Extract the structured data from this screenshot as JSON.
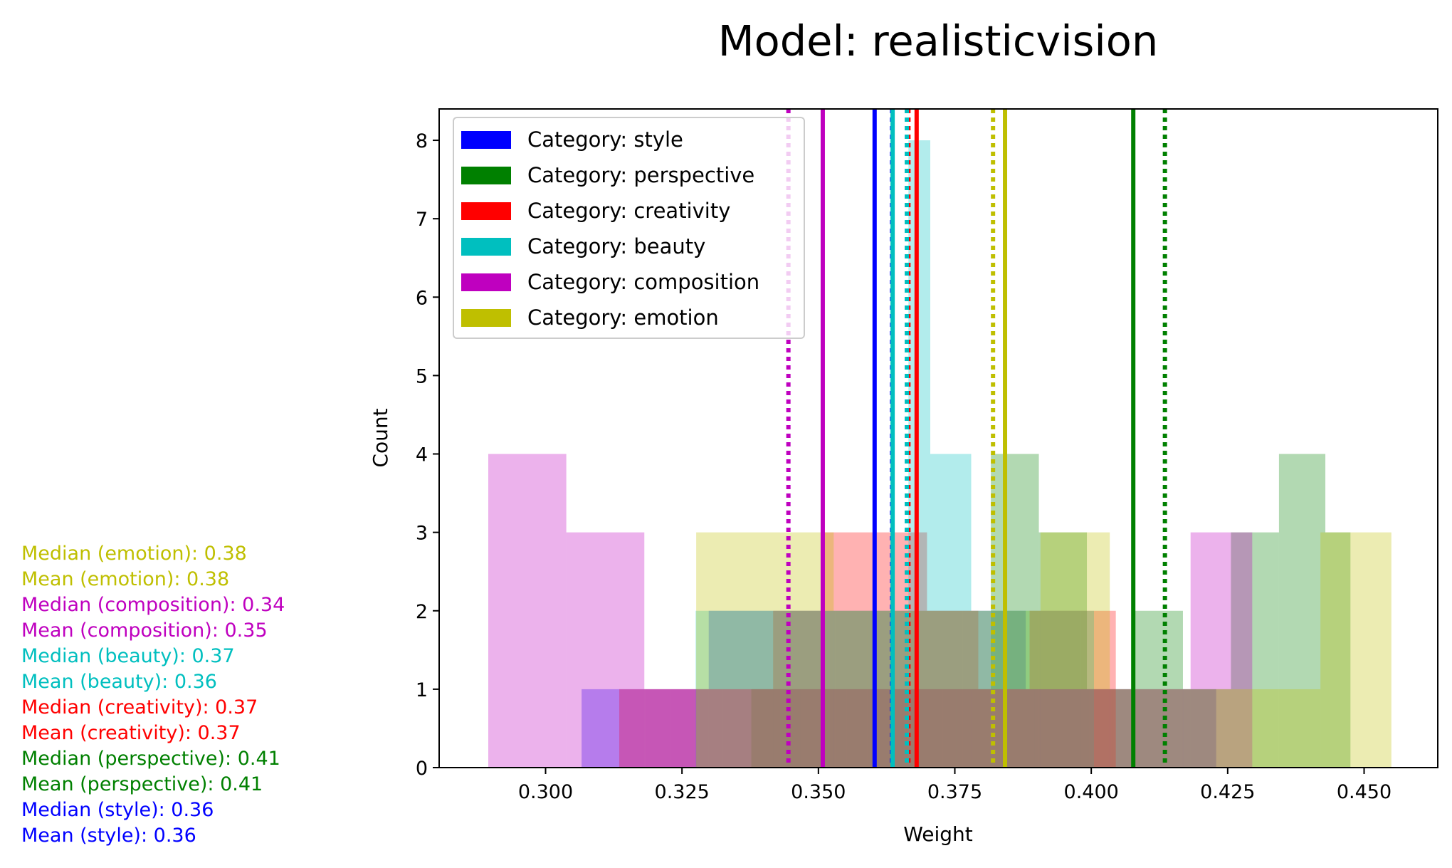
{
  "chart_data": {
    "type": "histogram",
    "title": "Model: realisticvision",
    "xlabel": "Weight",
    "ylabel": "Count",
    "xlim": [
      0.2805,
      0.4635
    ],
    "ylim": [
      0,
      8.4
    ],
    "xticks": [
      "0.300",
      "0.325",
      "0.350",
      "0.375",
      "0.400",
      "0.425",
      "0.450"
    ],
    "yticks": [
      "0",
      "1",
      "2",
      "3",
      "4",
      "5",
      "6",
      "7",
      "8"
    ],
    "grid": false,
    "legend_position": "top-left",
    "series": [
      {
        "name": "Category: style",
        "color": "#0000ff",
        "bins": [
          [
            0.3066,
            0.3183,
            1
          ],
          [
            0.3183,
            0.3299,
            1
          ],
          [
            0.3299,
            0.3415,
            2
          ],
          [
            0.3415,
            0.3531,
            2
          ],
          [
            0.3531,
            0.3647,
            2
          ],
          [
            0.3647,
            0.3764,
            2
          ],
          [
            0.3764,
            0.388,
            2
          ],
          [
            0.388,
            0.3996,
            1
          ],
          [
            0.3996,
            0.4112,
            1
          ],
          [
            0.4112,
            0.4229,
            1
          ]
        ],
        "mean": 0.3603,
        "median": 0.3635
      },
      {
        "name": "Category: perspective",
        "color": "#008000",
        "bins": [
          [
            0.3377,
            0.3464,
            1
          ],
          [
            0.3464,
            0.3552,
            1
          ],
          [
            0.3552,
            0.364,
            1
          ],
          [
            0.364,
            0.3728,
            1
          ],
          [
            0.3728,
            0.3816,
            1
          ],
          [
            0.3816,
            0.3904,
            4
          ],
          [
            0.3904,
            0.3992,
            3
          ],
          [
            0.3992,
            0.408,
            1
          ],
          [
            0.408,
            0.4168,
            2
          ],
          [
            0.4168,
            0.4256,
            1
          ],
          [
            0.4256,
            0.4344,
            3
          ],
          [
            0.4344,
            0.4429,
            4
          ],
          [
            0.4429,
            0.4475,
            3
          ]
        ],
        "mean": 0.4077,
        "median": 0.4135
      },
      {
        "name": "Category: creativity",
        "color": "#ff0000",
        "bins": [
          [
            0.3135,
            0.3229,
            1
          ],
          [
            0.3229,
            0.3323,
            1
          ],
          [
            0.3323,
            0.3417,
            1
          ],
          [
            0.3417,
            0.3511,
            2
          ],
          [
            0.3511,
            0.3605,
            3
          ],
          [
            0.3605,
            0.3699,
            3
          ],
          [
            0.3699,
            0.3793,
            2
          ],
          [
            0.3793,
            0.3887,
            1
          ],
          [
            0.3887,
            0.3981,
            2
          ],
          [
            0.3981,
            0.4045,
            2
          ]
        ],
        "mean": 0.368,
        "median": 0.3665
      },
      {
        "name": "Category: beauty",
        "color": "#00bfbf",
        "bins": [
          [
            0.3275,
            0.3433,
            2
          ],
          [
            0.3433,
            0.3589,
            2
          ],
          [
            0.3589,
            0.3665,
            2
          ],
          [
            0.3665,
            0.3705,
            8
          ],
          [
            0.3705,
            0.378,
            4
          ],
          [
            0.378,
            0.3894,
            2
          ],
          [
            0.3894,
            0.4005,
            2
          ]
        ],
        "mean": 0.3636,
        "median": 0.3662
      },
      {
        "name": "Category: composition",
        "color": "#bf00bf",
        "bins": [
          [
            0.2895,
            0.3038,
            4
          ],
          [
            0.3038,
            0.3181,
            3
          ],
          [
            0.3181,
            0.3324,
            1
          ],
          [
            0.3324,
            0.3467,
            1
          ],
          [
            0.3467,
            0.361,
            1
          ],
          [
            0.361,
            0.3753,
            1
          ],
          [
            0.3753,
            0.3896,
            1
          ],
          [
            0.3896,
            0.4039,
            1
          ],
          [
            0.4039,
            0.4182,
            1
          ],
          [
            0.4182,
            0.4295,
            3
          ]
        ],
        "mean": 0.3508,
        "median": 0.3445
      },
      {
        "name": "Category: emotion",
        "color": "#bfbf00",
        "bins": [
          [
            0.3276,
            0.3528,
            3
          ],
          [
            0.3528,
            0.3655,
            2
          ],
          [
            0.3655,
            0.3781,
            2
          ],
          [
            0.3781,
            0.3907,
            2
          ],
          [
            0.3907,
            0.4034,
            3
          ],
          [
            0.4034,
            0.4169,
            1
          ],
          [
            0.4169,
            0.4295,
            1
          ],
          [
            0.4295,
            0.442,
            1
          ],
          [
            0.442,
            0.4475,
            3
          ],
          [
            0.4475,
            0.455,
            3
          ]
        ],
        "mean": 0.3842,
        "median": 0.382
      }
    ]
  },
  "stats_text": [
    {
      "text": "Median (emotion): 0.38",
      "color": "#bfbf00"
    },
    {
      "text": "Mean (emotion): 0.38",
      "color": "#bfbf00"
    },
    {
      "text": "Median (composition): 0.34",
      "color": "#bf00bf"
    },
    {
      "text": "Mean (composition): 0.35",
      "color": "#bf00bf"
    },
    {
      "text": "Median (beauty): 0.37",
      "color": "#00bfbf"
    },
    {
      "text": "Mean (beauty): 0.36",
      "color": "#00bfbf"
    },
    {
      "text": "Median (creativity): 0.37",
      "color": "#ff0000"
    },
    {
      "text": "Mean (creativity): 0.37",
      "color": "#ff0000"
    },
    {
      "text": "Median (perspective): 0.41",
      "color": "#008000"
    },
    {
      "text": "Mean (perspective): 0.41",
      "color": "#008000"
    },
    {
      "text": "Median (style): 0.36",
      "color": "#0000ff"
    },
    {
      "text": "Mean (style): 0.36",
      "color": "#0000ff"
    }
  ]
}
